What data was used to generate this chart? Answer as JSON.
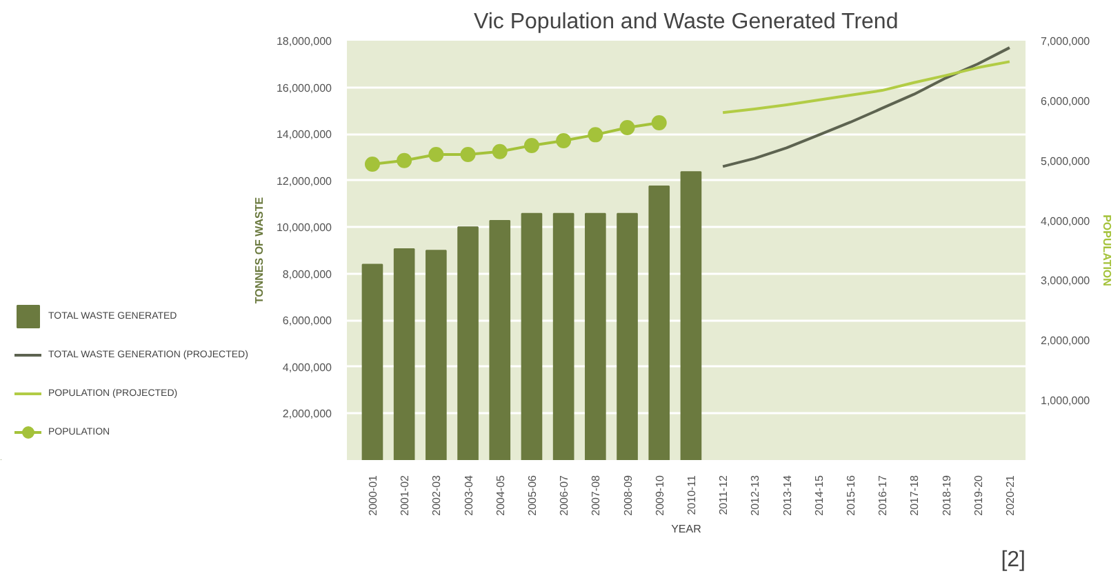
{
  "chart_data": {
    "type": "bar",
    "title": "Vic Population and Waste Generated Trend",
    "categories": [
      "2000-01",
      "2001-02",
      "2002-03",
      "2003-04",
      "2004-05",
      "2005-06",
      "2006-07",
      "2007-08",
      "2008-09",
      "2009-10",
      "2010-11",
      "2011-12",
      "2012-13",
      "2013-14",
      "2014-15",
      "2015-16",
      "2016-17",
      "2017-18",
      "2018-19",
      "2019-20",
      "2020-21"
    ],
    "series": [
      {
        "name": "TOTAL WASTE GENERATED",
        "color": "#6b7a3f",
        "values": [
          8390000,
          9060000,
          8990000,
          10000000,
          10270000,
          10580000,
          10580000,
          10580000,
          10580000,
          11750000,
          12370000,
          null,
          null,
          null,
          null,
          null,
          null,
          null,
          null,
          null,
          null
        ]
      },
      {
        "name": "TOTAL WASTE GENERATION (PROJECTED)",
        "type": "line",
        "marker": "none",
        "color": "#5d6350",
        "values": [
          null,
          null,
          null,
          null,
          null,
          null,
          null,
          null,
          null,
          null,
          null,
          12600000,
          12950000,
          13400000,
          13950000,
          14500000,
          15100000,
          15700000,
          16400000,
          17000000,
          17700000
        ]
      },
      {
        "name": "POPULATION (PROJECTED)",
        "type": "line",
        "marker": "none",
        "axis": "y2",
        "color": "#b2cc45",
        "values": [
          null,
          null,
          null,
          null,
          null,
          null,
          null,
          null,
          null,
          null,
          null,
          5800000,
          5860000,
          5930000,
          6010000,
          6090000,
          6170000,
          6300000,
          6420000,
          6550000,
          6650000
        ]
      },
      {
        "name": "POPULATION",
        "type": "line",
        "marker": "circle",
        "axis": "y2",
        "color": "#a4c23a",
        "values": [
          4940000,
          5000000,
          5100000,
          5100000,
          5150000,
          5250000,
          5330000,
          5430000,
          5550000,
          5630000,
          null,
          null,
          null,
          null,
          null,
          null,
          null,
          null,
          null,
          null,
          null
        ]
      }
    ],
    "ylabel": "TONNES OF WASTE",
    "y2label": "POPULATION",
    "xlabel": "YEAR",
    "ylim": [
      0,
      18000000
    ],
    "yticks": [
      {
        "value": 2000000,
        "label": "2,000,000"
      },
      {
        "value": 4000000,
        "label": "4,000,000"
      },
      {
        "value": 6000000,
        "label": "6,000,000"
      },
      {
        "value": 8000000,
        "label": "8,000,000"
      },
      {
        "value": 10000000,
        "label": "10,000,000"
      },
      {
        "value": 12000000,
        "label": "12,000,000"
      },
      {
        "value": 14000000,
        "label": "14,000,000"
      },
      {
        "value": 16000000,
        "label": "16,000,000"
      },
      {
        "value": 18000000,
        "label": "18,000,000"
      }
    ],
    "y2lim": [
      0,
      7000000
    ],
    "y2ticks": [
      {
        "value": 1000000,
        "label": "1,000,000"
      },
      {
        "value": 2000000,
        "label": "2,000,000"
      },
      {
        "value": 3000000,
        "label": "3,000,000"
      },
      {
        "value": 4000000,
        "label": "4,000,000"
      },
      {
        "value": 5000000,
        "label": "5,000,000"
      },
      {
        "value": 6000000,
        "label": "6,000,000"
      },
      {
        "value": 7000000,
        "label": "7,000,000"
      }
    ],
    "grid": "y",
    "legend": "left",
    "annotations": [
      "[2]"
    ]
  }
}
